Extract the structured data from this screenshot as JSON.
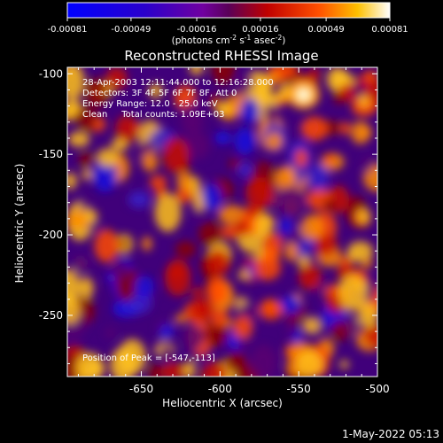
{
  "colorbar": {
    "ticks": [
      "-0.00081",
      "-0.00049",
      "-0.00016",
      "0.00016",
      "0.00049",
      "0.00081"
    ],
    "unit_main": "(photons cm",
    "unit_exp1": "-2",
    "unit_mid": " s",
    "unit_exp2": "-1",
    "unit_end": " asec",
    "unit_exp3": "-2",
    "unit_close": ")"
  },
  "chart_data": {
    "type": "heatmap",
    "title": "Reconstructed RHESSI Image",
    "xlabel": "Heliocentric X (arcsec)",
    "ylabel": "Heliocentric Y (arcsec)",
    "xlim": [
      -697,
      -500
    ],
    "ylim": [
      -288,
      -96
    ],
    "x_ticks": [
      -650,
      -600,
      -550,
      -500
    ],
    "y_ticks": [
      -100,
      -150,
      -200,
      -250
    ],
    "x_tick_labels": [
      "-650",
      "-600",
      "-550",
      "-500"
    ],
    "y_tick_labels": [
      "-100",
      "-150",
      "-200",
      "-250"
    ],
    "colorbar_range": [
      -0.00081,
      0.00081
    ],
    "annotations": [
      "28-Apr-2003 12:11:44.000 to 12:16:28.000",
      "Detectors: 3F 4F 5F 6F 7F 8F, Att 0",
      "Energy Range: 12.0 - 25.0 keV",
      "Clean     Total counts: 1.09E+03"
    ],
    "peak_text": "Position of Peak = [-547,-113]",
    "peak": [
      -547,
      -113
    ]
  },
  "footer_date": "1-May-2022 05:13"
}
